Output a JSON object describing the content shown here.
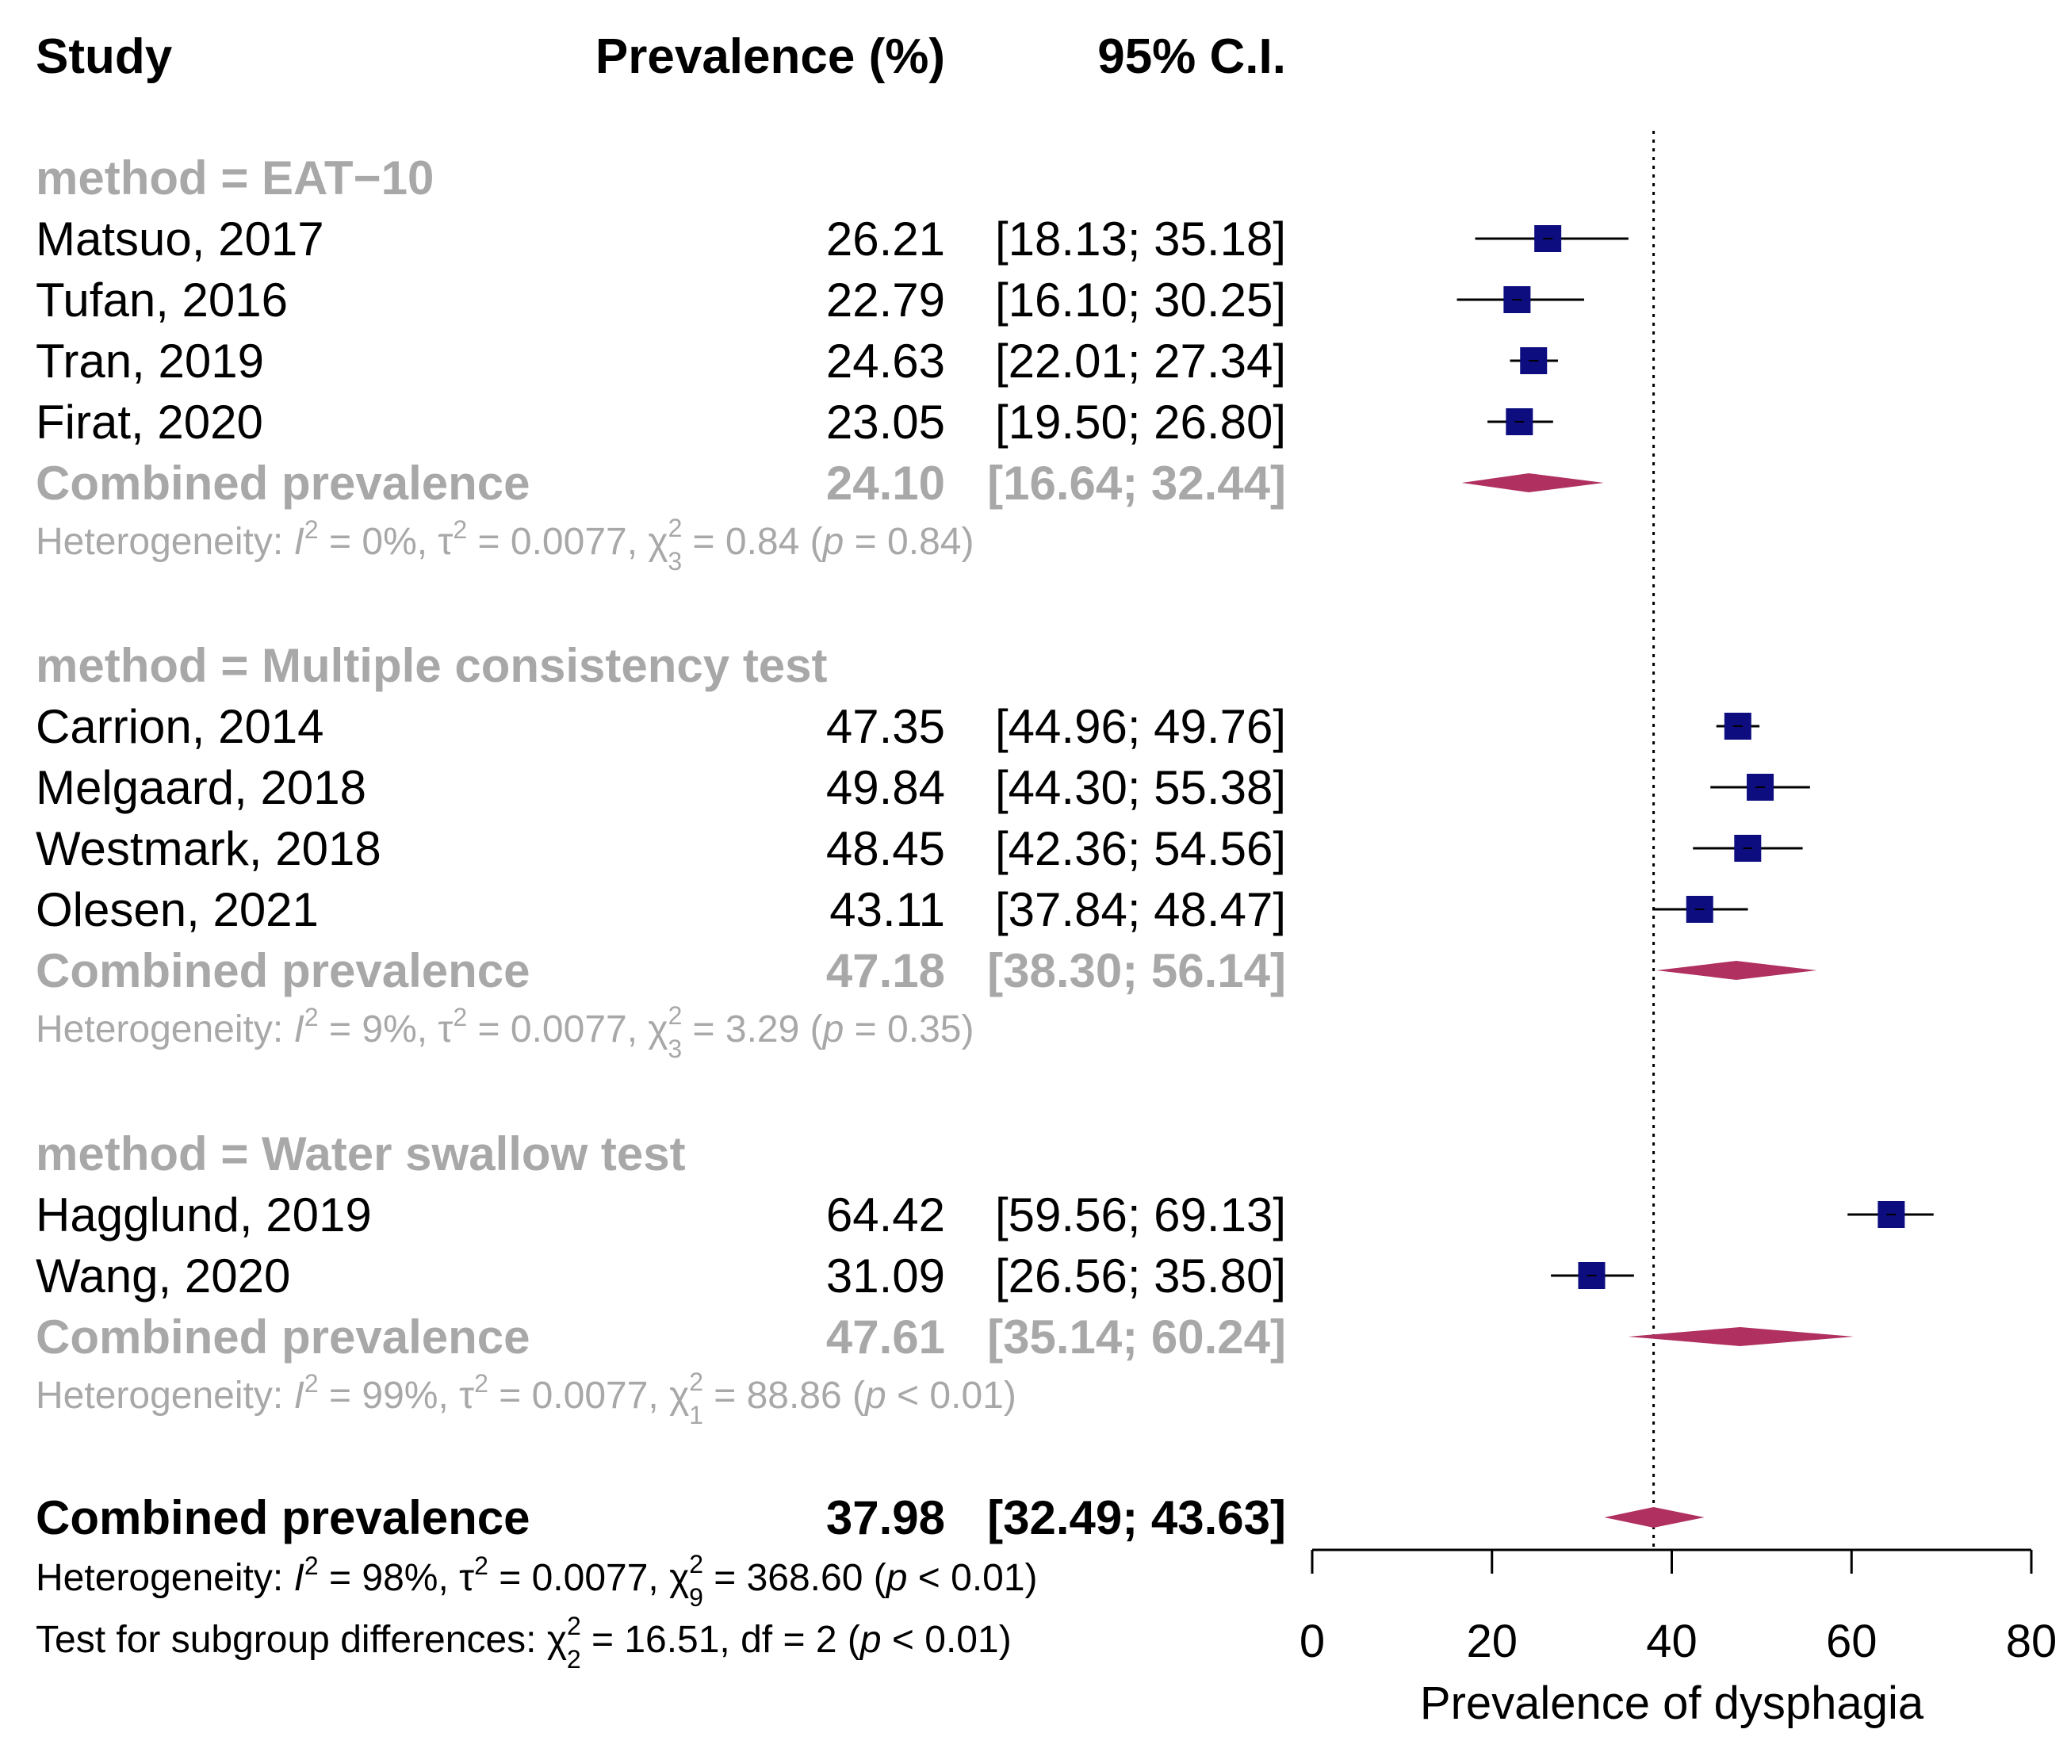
{
  "chart_data": {
    "type": "forest",
    "headers": {
      "study": "Study",
      "prevalence": "Prevalence (%)",
      "ci": "95% C.I."
    },
    "xlabel": "Prevalence of dysphagia",
    "xlim": [
      0,
      80
    ],
    "ticks": [
      0,
      20,
      40,
      60,
      80
    ],
    "reference_line": 37.98,
    "colors": {
      "square": "#0d0d80",
      "diamond": "#b03060",
      "muted": "#a8a8a8"
    },
    "groups": [
      {
        "label": "method = EAT−10",
        "studies": [
          {
            "name": "Matsuo, 2017",
            "est": 26.21,
            "lo": 18.13,
            "hi": 35.18,
            "est_text": "26.21",
            "ci_text": "[18.13; 35.18]"
          },
          {
            "name": "Tufan, 2016",
            "est": 22.79,
            "lo": 16.1,
            "hi": 30.25,
            "est_text": "22.79",
            "ci_text": "[16.10; 30.25]"
          },
          {
            "name": "Tran, 2019",
            "est": 24.63,
            "lo": 22.01,
            "hi": 27.34,
            "est_text": "24.63",
            "ci_text": "[22.01; 27.34]"
          },
          {
            "name": "Firat, 2020",
            "est": 23.05,
            "lo": 19.5,
            "hi": 26.8,
            "est_text": "23.05",
            "ci_text": "[19.50; 26.80]"
          }
        ],
        "combined": {
          "label": "Combined prevalence",
          "est": 24.1,
          "lo": 16.64,
          "hi": 32.44,
          "est_text": "24.10",
          "ci_text": "[16.64; 32.44]"
        },
        "het": {
          "prefix": "Heterogeneity: ",
          "I": "I",
          "I_val": " = 0%, ",
          "tau": "τ",
          "tau_val": " = 0.0077, ",
          "chi": "χ",
          "chi_df": "3",
          "chi_val": " = 0.84 (",
          "p": "p",
          "p_val": " = 0.84)"
        }
      },
      {
        "label": "method = Multiple consistency test",
        "studies": [
          {
            "name": "Carrion, 2014",
            "est": 47.35,
            "lo": 44.96,
            "hi": 49.76,
            "est_text": "47.35",
            "ci_text": "[44.96; 49.76]"
          },
          {
            "name": "Melgaard, 2018",
            "est": 49.84,
            "lo": 44.3,
            "hi": 55.38,
            "est_text": "49.84",
            "ci_text": "[44.30; 55.38]"
          },
          {
            "name": "Westmark, 2018",
            "est": 48.45,
            "lo": 42.36,
            "hi": 54.56,
            "est_text": "48.45",
            "ci_text": "[42.36; 54.56]"
          },
          {
            "name": "Olesen, 2021",
            "est": 43.11,
            "lo": 37.84,
            "hi": 48.47,
            "est_text": "43.11",
            "ci_text": "[37.84; 48.47]"
          }
        ],
        "combined": {
          "label": "Combined prevalence",
          "est": 47.18,
          "lo": 38.3,
          "hi": 56.14,
          "est_text": "47.18",
          "ci_text": "[38.30; 56.14]"
        },
        "het": {
          "prefix": "Heterogeneity: ",
          "I": "I",
          "I_val": " = 9%, ",
          "tau": "τ",
          "tau_val": " = 0.0077, ",
          "chi": "χ",
          "chi_df": "3",
          "chi_val": " = 3.29 (",
          "p": "p",
          "p_val": " = 0.35)"
        }
      },
      {
        "label": "method = Water swallow test",
        "studies": [
          {
            "name": "Hagglund, 2019",
            "est": 64.42,
            "lo": 59.56,
            "hi": 69.13,
            "est_text": "64.42",
            "ci_text": "[59.56; 69.13]"
          },
          {
            "name": "Wang, 2020",
            "est": 31.09,
            "lo": 26.56,
            "hi": 35.8,
            "est_text": "31.09",
            "ci_text": "[26.56; 35.80]"
          }
        ],
        "combined": {
          "label": "Combined prevalence",
          "est": 47.61,
          "lo": 35.14,
          "hi": 60.24,
          "est_text": "47.61",
          "ci_text": "[35.14; 60.24]"
        },
        "het": {
          "prefix": "Heterogeneity: ",
          "I": "I",
          "I_val": " = 99%, ",
          "tau": "τ",
          "tau_val": " = 0.0077, ",
          "chi": "χ",
          "chi_df": "1",
          "chi_val": " = 88.86 (",
          "p": "p",
          "p_val": " < 0.01)"
        }
      }
    ],
    "overall": {
      "label": "Combined prevalence",
      "est": 37.98,
      "lo": 32.49,
      "hi": 43.63,
      "est_text": "37.98",
      "ci_text": "[32.49; 43.63]",
      "het": {
        "prefix": "Heterogeneity: ",
        "I": "I",
        "I_val": " = 98%, ",
        "tau": "τ",
        "tau_val": " = 0.0077, ",
        "chi": "χ",
        "chi_df": "9",
        "chi_val": " = 368.60 (",
        "p": "p",
        "p_val": " < 0.01)"
      },
      "subgroup_test": {
        "prefix": "Test for subgroup differences: ",
        "chi": "χ",
        "chi_df": "2",
        "chi_val": " = 16.51, df = 2 (",
        "p": "p",
        "p_val": " < 0.01)"
      }
    }
  }
}
